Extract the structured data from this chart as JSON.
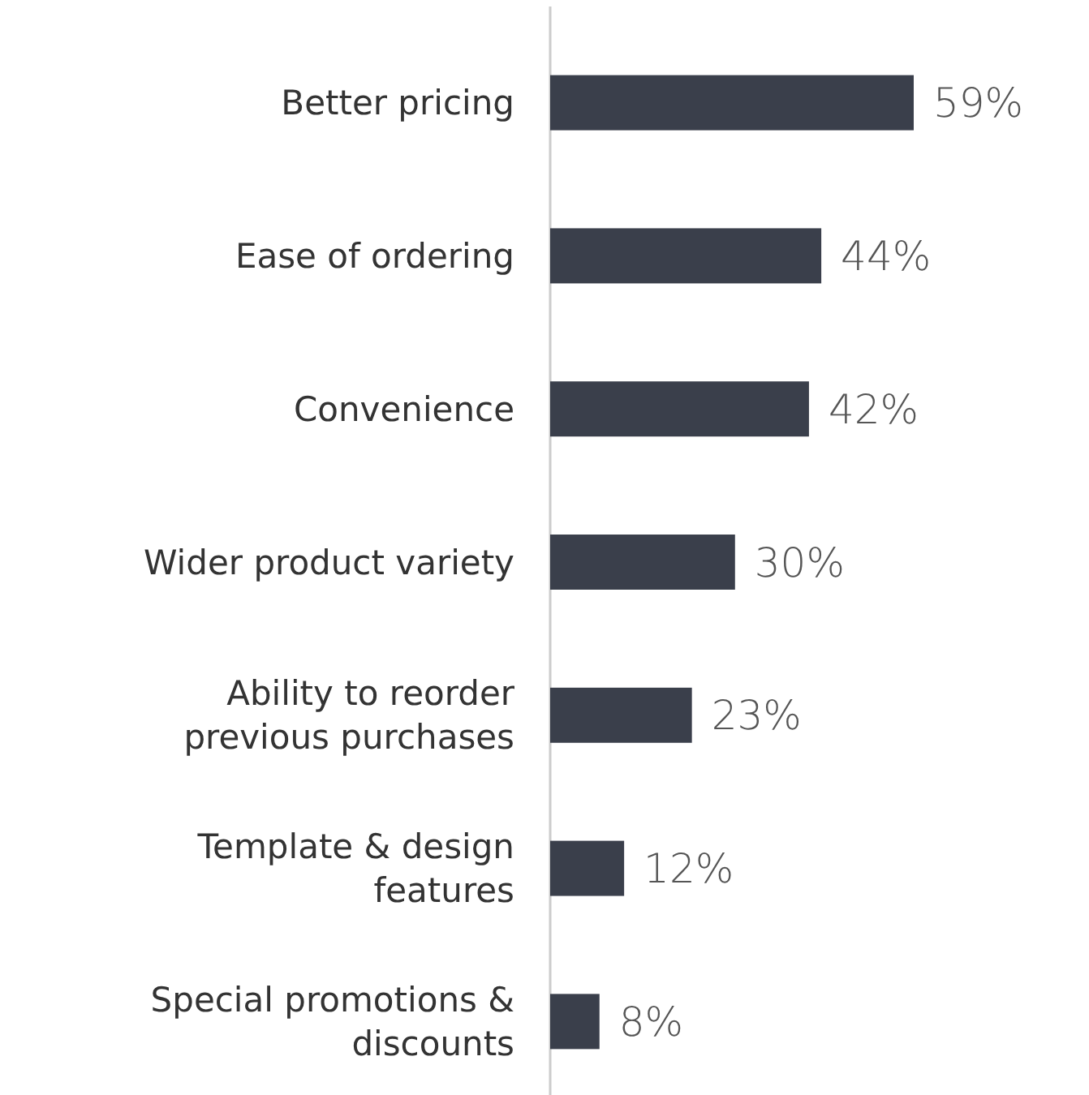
{
  "chart_data": {
    "type": "bar",
    "orientation": "horizontal",
    "categories": [
      "Better pricing",
      "Ease of ordering",
      "Convenience",
      "Wider product variety",
      "Ability to reorder\nprevious purchases",
      "Template & design\nfeatures",
      "Special promotions &\ndiscounts"
    ],
    "values": [
      59,
      44,
      42,
      30,
      23,
      12,
      8
    ],
    "value_labels": [
      "59%",
      "44%",
      "42%",
      "30%",
      "23%",
      "12%",
      "8%"
    ],
    "color": "#3a3f4b"
  }
}
